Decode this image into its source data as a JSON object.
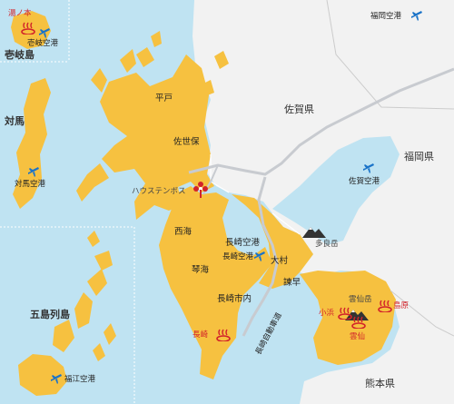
{
  "map": {
    "colors": {
      "sea": "#bfe3f2",
      "nagasaki_land": "#f6c140",
      "other_land": "#f2f2f2",
      "border": "#ffffff",
      "road": "#c8cbd0",
      "onsen": "#d2232a",
      "airport": "#1a73c8",
      "mountain": "#333333"
    },
    "islands": {
      "iki": "壱岐島",
      "tsushima": "対馬",
      "goto": "五島列島"
    },
    "prefectures": {
      "saga": "佐賀県",
      "fukuoka": "福岡県",
      "kumamoto": "熊本県"
    },
    "cities": {
      "hirado": "平戸",
      "sasebo": "佐世保",
      "saikai": "西海",
      "togitsu": "琴海",
      "omura": "大村",
      "isahaya": "諫早",
      "nagasaki_city": "長崎市内",
      "nagasaki_airport_area": "長崎空港"
    },
    "places": {
      "huis_ten_bosch": "ハウステンボス",
      "expressway": "長崎自動車道"
    },
    "mountains": {
      "tara": "多良岳",
      "unzen": "雲仙岳"
    },
    "onsen": {
      "yunomoto": "湯ノ本",
      "nagasaki": "長崎",
      "obama": "小浜",
      "unzen": "雲仙",
      "shimabara": "島原"
    },
    "airports": {
      "iki": "壱岐空港",
      "tsushima": "対馬空港",
      "fukue": "福江空港",
      "nagasaki": "長崎空港",
      "saga": "佐賀空港",
      "fukuoka": "福岡空港"
    },
    "icons": [
      "onsen-icon",
      "airport-icon",
      "mountain-icon",
      "huis-ten-bosch-icon"
    ]
  }
}
